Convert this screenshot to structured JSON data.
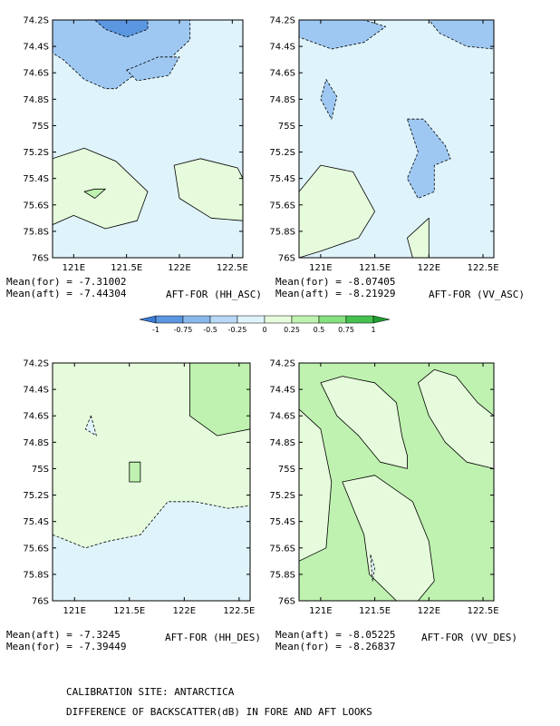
{
  "chart_data": [
    {
      "type": "heatmap",
      "panel_label": "AFT-FOR (HH_ASC)",
      "stats": [
        "Mean(for) = -7.31002",
        "Mean(aft) = -7.44304"
      ],
      "xlim": [
        120.8,
        122.6
      ],
      "ylim": [
        -76.0,
        -74.2
      ],
      "xticks": [
        "121E",
        "121.5E",
        "122E",
        "122.5E"
      ],
      "yticks": [
        "74.2S",
        "74.4S",
        "74.6S",
        "74.8S",
        "75S",
        "75.2S",
        "75.4S",
        "75.6S",
        "75.8S",
        "76S"
      ],
      "background_level": "0 to -0.25",
      "regions": [
        {
          "level": "-0.25 to -0.5",
          "x": [
            120.8,
            120.9,
            121.1,
            121.3,
            121.5,
            121.6,
            121.8,
            121.9,
            122.0,
            122.1,
            122.1,
            121.9,
            121.6,
            121.4,
            121.3,
            121.1,
            120.9,
            120.8
          ],
          "y": [
            -74.2,
            -74.2,
            -74.2,
            -74.2,
            -74.2,
            -74.2,
            -74.2,
            -74.2,
            -74.2,
            -74.2,
            -74.35,
            -74.5,
            -74.6,
            -74.72,
            -74.72,
            -74.65,
            -74.5,
            -74.45
          ]
        },
        {
          "level": "-0.5 to -0.75",
          "x": [
            121.2,
            121.7,
            121.7,
            121.5,
            121.3
          ],
          "y": [
            -74.2,
            -74.2,
            -74.27,
            -74.33,
            -74.27
          ]
        },
        {
          "level": "-0.25 to -0.5",
          "x": [
            121.5,
            121.8,
            122.0,
            121.9,
            121.6
          ],
          "y": [
            -74.58,
            -74.48,
            -74.48,
            -74.62,
            -74.66
          ]
        },
        {
          "level": "0 to 0.25",
          "x": [
            120.8,
            121.1,
            121.4,
            121.7,
            121.6,
            121.3,
            121.0,
            120.8
          ],
          "y": [
            -75.25,
            -75.17,
            -75.27,
            -75.5,
            -75.72,
            -75.78,
            -75.68,
            -75.75
          ]
        },
        {
          "level": "0.25 to 0.5",
          "x": [
            121.2,
            121.3,
            121.2,
            121.1
          ],
          "y": [
            -75.48,
            -75.48,
            -75.55,
            -75.5
          ]
        },
        {
          "level": "0 to 0.25",
          "x": [
            121.95,
            122.2,
            122.55,
            122.6,
            122.6,
            122.3,
            122.0
          ],
          "y": [
            -75.3,
            -75.25,
            -75.32,
            -75.4,
            -75.72,
            -75.7,
            -75.55
          ]
        }
      ]
    },
    {
      "type": "heatmap",
      "panel_label": "AFT-FOR (VV_ASC)",
      "stats": [
        "Mean(for) = -8.07405",
        "Mean(aft) = -8.21929"
      ],
      "xlim": [
        120.8,
        122.6
      ],
      "ylim": [
        -76.0,
        -74.2
      ],
      "xticks": [
        "121E",
        "121.5E",
        "122E",
        "122.5E"
      ],
      "yticks": [
        "74.2S",
        "74.4S",
        "74.6S",
        "74.8S",
        "75S",
        "75.2S",
        "75.4S",
        "75.6S",
        "75.8S",
        "76S"
      ],
      "background_level": "0 to -0.25",
      "regions": [
        {
          "level": "-0.25 to -0.5",
          "x": [
            120.8,
            121.0,
            121.4,
            121.6,
            121.4,
            121.1,
            120.8
          ],
          "y": [
            -74.2,
            -74.2,
            -74.2,
            -74.25,
            -74.37,
            -74.42,
            -74.33
          ]
        },
        {
          "level": "-0.25 to -0.5",
          "x": [
            122.0,
            122.6,
            122.6,
            122.35,
            122.1
          ],
          "y": [
            -74.2,
            -74.2,
            -74.42,
            -74.4,
            -74.3
          ]
        },
        {
          "level": "-0.25 to -0.5",
          "x": [
            121.05,
            121.15,
            121.1,
            121.0
          ],
          "y": [
            -74.65,
            -74.78,
            -74.95,
            -74.8
          ]
        },
        {
          "level": "-0.25 to -0.5",
          "x": [
            121.8,
            121.95,
            122.15,
            122.2,
            122.05,
            122.05,
            121.9,
            121.8,
            121.9
          ],
          "y": [
            -74.95,
            -74.95,
            -75.15,
            -75.25,
            -75.3,
            -75.5,
            -75.55,
            -75.4,
            -75.2
          ]
        },
        {
          "level": "0 to 0.25",
          "x": [
            120.8,
            121.0,
            121.3,
            121.5,
            121.35,
            121.0,
            120.8
          ],
          "y": [
            -75.5,
            -75.3,
            -75.35,
            -75.65,
            -75.85,
            -75.95,
            -76.0
          ]
        },
        {
          "level": "0 to 0.25",
          "x": [
            121.8,
            122.0,
            122.0,
            121.85
          ],
          "y": [
            -75.85,
            -75.7,
            -76.0,
            -76.0
          ]
        }
      ]
    },
    {
      "type": "heatmap",
      "panel_label": "AFT-FOR (HH_DES)",
      "stats": [
        "Mean(aft) = -7.3245",
        "Mean(for) = -7.39449"
      ],
      "xlim": [
        120.8,
        122.6
      ],
      "ylim": [
        -76.0,
        -74.2
      ],
      "xticks": [
        "121E",
        "121.5E",
        "122E",
        "122.5E"
      ],
      "yticks": [
        "74.2S",
        "74.4S",
        "74.6S",
        "74.8S",
        "75S",
        "75.2S",
        "75.4S",
        "75.6S",
        "75.8S",
        "76S"
      ],
      "background_level": "0 to 0.25",
      "regions": [
        {
          "level": "0.25 to 0.5",
          "x": [
            122.05,
            122.6,
            122.6,
            122.3,
            122.05
          ],
          "y": [
            -74.2,
            -74.2,
            -74.7,
            -74.75,
            -74.6
          ]
        },
        {
          "level": "0.25 to 0.5",
          "x": [
            121.5,
            121.6,
            121.6,
            121.5
          ],
          "y": [
            -74.95,
            -74.95,
            -75.1,
            -75.1
          ]
        },
        {
          "level": "0 to -0.25",
          "x": [
            120.8,
            121.1,
            121.3,
            121.6,
            121.85,
            122.1,
            122.4,
            122.6,
            122.6,
            120.8
          ],
          "y": [
            -75.5,
            -75.6,
            -75.55,
            -75.5,
            -75.25,
            -75.25,
            -75.3,
            -75.28,
            -76.0,
            -76.0
          ]
        },
        {
          "level": "0 to -0.25",
          "x": [
            121.15,
            121.2,
            121.1
          ],
          "y": [
            -74.6,
            -74.75,
            -74.7
          ]
        }
      ]
    },
    {
      "type": "heatmap",
      "panel_label": "AFT-FOR (VV_DES)",
      "stats": [
        "Mean(aft) = -8.05225",
        "Mean(for) = -8.26837"
      ],
      "xlim": [
        120.8,
        122.6
      ],
      "ylim": [
        -76.0,
        -74.2
      ],
      "xticks": [
        "121E",
        "121.5E",
        "122E",
        "122.5E"
      ],
      "yticks": [
        "74.2S",
        "74.4S",
        "74.6S",
        "74.8S",
        "75S",
        "75.2S",
        "75.4S",
        "75.6S",
        "75.8S",
        "76S"
      ],
      "background_level": "0.25 to 0.5",
      "regions": [
        {
          "level": "0 to 0.25",
          "x": [
            121.0,
            121.2,
            121.5,
            121.7,
            121.75,
            121.8,
            121.8,
            121.55,
            121.35,
            121.15
          ],
          "y": [
            -74.35,
            -74.3,
            -74.35,
            -74.5,
            -74.75,
            -74.9,
            -75.0,
            -74.95,
            -74.75,
            -74.6
          ]
        },
        {
          "level": "0 to 0.25",
          "x": [
            121.9,
            122.05,
            122.25,
            122.45,
            122.6,
            122.6,
            122.35,
            122.15,
            122.0
          ],
          "y": [
            -74.35,
            -74.25,
            -74.3,
            -74.5,
            -74.6,
            -75.0,
            -74.95,
            -74.8,
            -74.6
          ]
        },
        {
          "level": "0 to 0.25",
          "x": [
            121.2,
            121.5,
            121.85,
            122.0,
            122.05,
            121.9,
            121.7,
            121.45,
            121.4,
            121.3
          ],
          "y": [
            -75.1,
            -75.05,
            -75.25,
            -75.55,
            -75.85,
            -76.0,
            -76.0,
            -75.8,
            -75.5,
            -75.3
          ]
        },
        {
          "level": "0 to 0.25",
          "x": [
            120.8,
            121.0,
            121.1,
            121.05,
            120.8
          ],
          "y": [
            -74.55,
            -74.7,
            -75.1,
            -75.6,
            -75.7
          ]
        },
        {
          "level": "0 to -0.25",
          "x": [
            121.46,
            121.5,
            121.48
          ],
          "y": [
            -75.65,
            -75.75,
            -75.85
          ]
        }
      ]
    }
  ],
  "colorbar": {
    "levels": [
      "-1",
      "-0.75",
      "-0.5",
      "-0.25",
      "0",
      "0.25",
      "0.5",
      "0.75",
      "1"
    ],
    "colors": [
      "#3b7bd4",
      "#5b96e0",
      "#8ab8ec",
      "#b8d8f6",
      "#dff3fb",
      "#e6fbdc",
      "#bff2b0",
      "#86e07e",
      "#45c14f",
      "#1f9e2f"
    ]
  },
  "fill_colors": {
    "-0.5 to -0.75": "#5b96e0",
    "-0.25 to -0.5": "#9ec8f2",
    "0 to -0.25": "#dff3fb",
    "0 to 0.25": "#e6fbdc",
    "0.25 to 0.5": "#bff2b0"
  },
  "footer": {
    "line1": "CALIBRATION SITE: ANTARCTICA",
    "line2": "DIFFERENCE OF BACKSCATTER(dB) IN FORE AND AFT LOOKS"
  }
}
